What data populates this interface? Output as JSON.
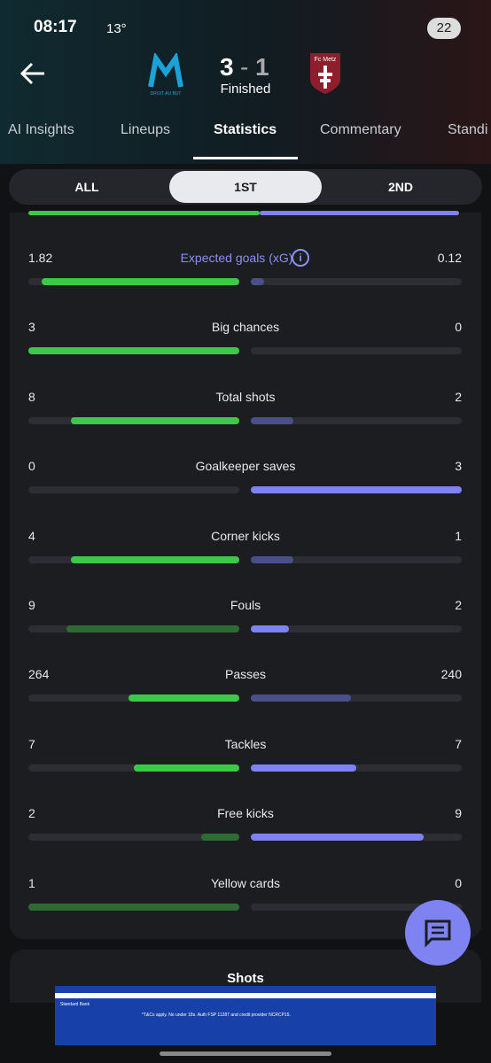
{
  "status_bar": {
    "time": "08:17",
    "temperature": "13°",
    "battery": "22"
  },
  "header": {
    "home_badge": "DROIT AU BUT",
    "away_badge": "Fc Metz",
    "home_score": "3",
    "separator": "-",
    "away_score": "1",
    "status": "Finished"
  },
  "tabs": {
    "items": [
      "AI Insights",
      "Lineups",
      "Statistics",
      "Commentary",
      "Standi"
    ],
    "selected": 2
  },
  "periods": {
    "items": [
      "ALL",
      "1ST",
      "2ND"
    ],
    "selected": 1
  },
  "stats": [
    {
      "label": "Expected goals (xG)",
      "label_color": "#8b8ff5",
      "home": 1.82,
      "away": 0.12,
      "home_color": "#3ec84a",
      "away_color": "#4a4f8a"
    },
    {
      "label": "Big chances",
      "home": 3,
      "away": 0,
      "home_color": "#3ec84a",
      "away_color": "#4a4f8a"
    },
    {
      "label": "Total shots",
      "home": 8,
      "away": 2,
      "home_color": "#3ec84a",
      "away_color": "#4a4f8a"
    },
    {
      "label": "Goalkeeper saves",
      "home": 0,
      "away": 3,
      "home_color": "#2e6b34",
      "away_color": "#7f83f2"
    },
    {
      "label": "Corner kicks",
      "home": 4,
      "away": 1,
      "home_color": "#3ec84a",
      "away_color": "#4a4f8a"
    },
    {
      "label": "Fouls",
      "home": 9,
      "away": 2,
      "home_color": "#2e6b34",
      "away_color": "#7f83f2"
    },
    {
      "label": "Passes",
      "home": 264,
      "away": 240,
      "home_color": "#3ec84a",
      "away_color": "#4a4f8a"
    },
    {
      "label": "Tackles",
      "home": 7,
      "away": 7,
      "home_color": "#3ec84a",
      "away_color": "#7f83f2"
    },
    {
      "label": "Free kicks",
      "home": 2,
      "away": 9,
      "home_color": "#2e6b34",
      "away_color": "#7f83f2"
    },
    {
      "label": "Yellow cards",
      "home": 1,
      "away": 0,
      "home_color": "#2e6b34",
      "away_color": "#4a4f8a"
    }
  ],
  "next_section": {
    "title": "Shots"
  },
  "ad": {
    "brand": "Standard Bank",
    "disclaimer": "*T&Cs apply. No under 18s. Auth FSP 11287 and credit provider NCRCP15."
  }
}
